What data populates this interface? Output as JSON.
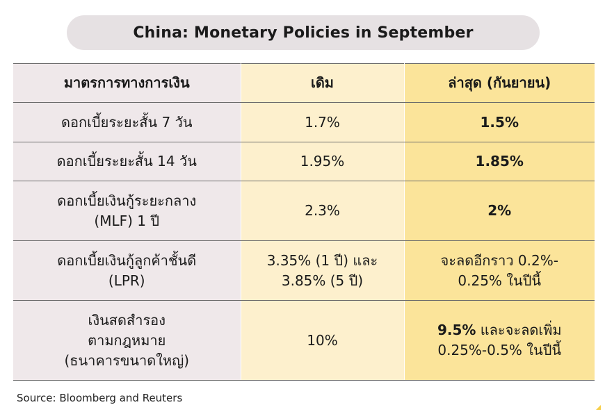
{
  "title": "China: Monetary Policies in September",
  "table": {
    "headers": [
      "มาตรการทางการเงิน",
      "เดิม",
      "ล่าสุด (กันยายน)"
    ],
    "rows": [
      {
        "measure": "ดอกเบี้ยระยะสั้น 7 วัน",
        "previous": "1.7%",
        "latest_bold": "1.5%",
        "latest_rest": ""
      },
      {
        "measure": "ดอกเบี้ยระยะสั้น 14 วัน",
        "previous": "1.95%",
        "latest_bold": "1.85%",
        "latest_rest": ""
      },
      {
        "measure_line1": "ดอกเบี้ยเงินกู้ระยะกลาง",
        "measure_line2": "(MLF) 1 ปี",
        "previous": "2.3%",
        "latest_bold": "2%",
        "latest_rest": ""
      },
      {
        "measure_line1": "ดอกเบี้ยเงินกู้ลูกค้าชั้นดี",
        "measure_line2": "(LPR)",
        "previous_line1": "3.35% (1 ปี) และ",
        "previous_line2": "3.85% (5 ปี)",
        "latest_line1": "จะลดอีกราว 0.2%-",
        "latest_line2": "0.25% ในปีนี้"
      },
      {
        "measure_line1": "เงินสดสำรอง",
        "measure_line2": "ตามกฎหมาย",
        "measure_line3": "(ธนาคารขนาดใหญ่)",
        "previous": "10%",
        "latest_bold": "9.5%",
        "latest_rest": " และจะลดเพิ่ม",
        "latest_line2": "0.25%-0.5% ในปีนี้"
      }
    ]
  },
  "source": "Source: Bloomberg and Reuters",
  "colors": {
    "title_pill": "#e6e1e3",
    "col1_bg": "#efe8ea",
    "col2_bg": "#fdf0cd",
    "col3_bg": "#fbe49a"
  }
}
